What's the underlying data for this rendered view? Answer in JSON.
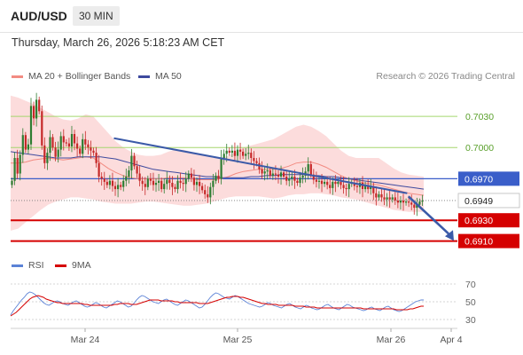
{
  "header": {
    "symbol": "AUD/USD",
    "interval": "30 MIN",
    "datetime": "Thursday, March 26, 2026 5:18:23 AM CET"
  },
  "legend": {
    "ma20_label": "MA 20 + Bollinger Bands",
    "ma50_label": "MA 50",
    "credit": "Research © 2026 Trading Central",
    "rsi_label": "RSI",
    "rsi_ma_label": "9MA"
  },
  "colors": {
    "candle_up": "#2e7d32",
    "candle_down": "#c62828",
    "bollinger_fill": "#fcd6d6",
    "ma20": "#f28b82",
    "ma50": "#3e4a9e",
    "pivot": "#3a5ec9",
    "support": "#d50000",
    "resistance": "#a5d66e",
    "trendline": "#3b5aa8",
    "rsi": "#5b82d6",
    "rsi_ma": "#d50000"
  },
  "chart_data": [
    {
      "type": "candlestick",
      "ylim": [
        0.6896,
        0.706
      ],
      "x_ticks": [
        "Mar 24",
        "Mar 25",
        "Mar 26",
        "Apr 4"
      ],
      "candle_count": 152,
      "closes": [
        0.6968,
        0.699,
        0.6975,
        0.6993,
        0.7012,
        0.6998,
        0.7003,
        0.704,
        0.7028,
        0.7046,
        0.7035,
        0.7002,
        0.6985,
        0.6995,
        0.701,
        0.7,
        0.6991,
        0.6998,
        0.7011,
        0.7005,
        0.7004,
        0.7001,
        0.7013,
        0.7004,
        0.6999,
        0.6994,
        0.7008,
        0.7003,
        0.7,
        0.6997,
        0.6995,
        0.6985,
        0.6972,
        0.697,
        0.6967,
        0.6964,
        0.6968,
        0.6963,
        0.696,
        0.6964,
        0.6962,
        0.6968,
        0.6972,
        0.6978,
        0.6992,
        0.6982,
        0.6975,
        0.6968,
        0.6965,
        0.6962,
        0.697,
        0.6968,
        0.6964,
        0.6966,
        0.6968,
        0.696,
        0.6965,
        0.6969,
        0.6966,
        0.6962,
        0.696,
        0.6968,
        0.6966,
        0.6965,
        0.697,
        0.6975,
        0.6971,
        0.6964,
        0.6967,
        0.6963,
        0.6959,
        0.6955,
        0.6952,
        0.6962,
        0.6968,
        0.6973,
        0.697,
        0.699,
        0.6994,
        0.6997,
        0.6995,
        0.6997,
        0.6992,
        0.6998,
        0.6996,
        0.6992,
        0.6994,
        0.6995,
        0.699,
        0.6987,
        0.6985,
        0.6979,
        0.6975,
        0.6977,
        0.6978,
        0.6973,
        0.6975,
        0.6974,
        0.6972,
        0.6976,
        0.6972,
        0.6968,
        0.697,
        0.6972,
        0.6968,
        0.6966,
        0.6971,
        0.6973,
        0.6977,
        0.6984,
        0.6974,
        0.6969,
        0.6967,
        0.6968,
        0.6965,
        0.6967,
        0.6964,
        0.6961,
        0.6967,
        0.6965,
        0.6967,
        0.6964,
        0.6961,
        0.696,
        0.6965,
        0.6966,
        0.6963,
        0.6962,
        0.6966,
        0.696,
        0.6964,
        0.696,
        0.6962,
        0.6956,
        0.6952,
        0.6955,
        0.6952,
        0.695,
        0.6952,
        0.695,
        0.6952,
        0.6949,
        0.6947,
        0.6949,
        0.6947,
        0.6948,
        0.6947,
        0.6945,
        0.6942,
        0.6945,
        0.6948,
        0.6949
      ],
      "bollinger_upper": [
        0.705,
        0.7048,
        0.7045,
        0.7042,
        0.7038,
        0.7034,
        0.703,
        0.7027,
        0.7026,
        0.7028,
        0.7032,
        0.703,
        0.7022,
        0.7014,
        0.7006,
        0.7,
        0.6996,
        0.6993,
        0.6992,
        0.6992,
        0.6993,
        0.6996,
        0.6998,
        0.6998,
        0.6996,
        0.6994,
        0.6992,
        0.699,
        0.699,
        0.6992,
        0.6996,
        0.7,
        0.7002,
        0.7004,
        0.7006,
        0.7008,
        0.7012,
        0.7016,
        0.702,
        0.7022,
        0.702,
        0.7016,
        0.7011,
        0.7004,
        0.6997,
        0.6992,
        0.699,
        0.699,
        0.699,
        0.699,
        0.6985,
        0.698,
        0.6976,
        0.6974,
        0.6973,
        0.6972
      ],
      "bollinger_lower": [
        0.692,
        0.6922,
        0.6928,
        0.6934,
        0.694,
        0.6945,
        0.6948,
        0.695,
        0.6952,
        0.6952,
        0.6951,
        0.695,
        0.6948,
        0.6947,
        0.6946,
        0.6946,
        0.6946,
        0.6947,
        0.6948,
        0.6948,
        0.6947,
        0.6946,
        0.6945,
        0.6944,
        0.6944,
        0.6945,
        0.6946,
        0.6948,
        0.695,
        0.6952,
        0.6953,
        0.6953,
        0.6953,
        0.6953,
        0.6952,
        0.6951,
        0.6952,
        0.6954,
        0.6955,
        0.6955,
        0.6956,
        0.6956,
        0.6955,
        0.6954,
        0.6952,
        0.6951,
        0.695,
        0.6948,
        0.6946,
        0.6944,
        0.6942,
        0.694,
        0.6939,
        0.6938,
        0.6938,
        0.6938
      ],
      "ma20": [
        0.6985,
        0.6985,
        0.6986,
        0.6988,
        0.6989,
        0.699,
        0.6989,
        0.6988,
        0.6989,
        0.699,
        0.6991,
        0.699,
        0.6985,
        0.698,
        0.6976,
        0.6973,
        0.6971,
        0.697,
        0.697,
        0.697,
        0.697,
        0.6971,
        0.6971,
        0.6971,
        0.697,
        0.6969,
        0.6969,
        0.6969,
        0.697,
        0.6972,
        0.6975,
        0.6977,
        0.6978,
        0.6979,
        0.6979,
        0.6979,
        0.698,
        0.6982,
        0.6985,
        0.6986,
        0.6986,
        0.6984,
        0.6981,
        0.6977,
        0.6973,
        0.697,
        0.6968,
        0.6966,
        0.6965,
        0.6964,
        0.6962,
        0.696,
        0.6958,
        0.6956,
        0.6955,
        0.6954
      ],
      "ma50": [
        0.6996,
        0.6995,
        0.6994,
        0.6993,
        0.6992,
        0.6991,
        0.699,
        0.699,
        0.699,
        0.6991,
        0.6991,
        0.6991,
        0.6991,
        0.699,
        0.6989,
        0.6987,
        0.6985,
        0.6983,
        0.6981,
        0.6979,
        0.6978,
        0.6977,
        0.6976,
        0.6975,
        0.6974,
        0.6973,
        0.6972,
        0.6972,
        0.6971,
        0.6971,
        0.6971,
        0.6971,
        0.6972,
        0.6972,
        0.6973,
        0.6973,
        0.6974,
        0.6974,
        0.6974,
        0.6974,
        0.6973,
        0.6973,
        0.6972,
        0.6972,
        0.6971,
        0.697,
        0.6969,
        0.6968,
        0.6967,
        0.6966,
        0.6965,
        0.6964,
        0.6963,
        0.6962,
        0.6961,
        0.696
      ],
      "levels": [
        {
          "value": 0.703,
          "label": "0.7030",
          "kind": "resistance"
        },
        {
          "value": 0.7,
          "label": "0.7000",
          "kind": "resistance"
        },
        {
          "value": 0.697,
          "label": "0.6970",
          "kind": "pivot"
        },
        {
          "value": 0.6949,
          "label": "0.6949",
          "kind": "last"
        },
        {
          "value": 0.693,
          "label": "0.6930",
          "kind": "support"
        },
        {
          "value": 0.691,
          "label": "0.6910",
          "kind": "support"
        }
      ],
      "trendline": [
        [
          0.25,
          0.7009
        ],
        [
          0.96,
          0.6956
        ]
      ],
      "forecast_arrow": [
        [
          0.963,
          0.6953
        ],
        [
          1.0,
          0.6912
        ]
      ]
    },
    {
      "type": "line",
      "yticks": [
        70,
        50,
        30
      ],
      "ylim": [
        24,
        78
      ],
      "series": [
        {
          "name": "RSI",
          "values": [
            35,
            40,
            44,
            48,
            52,
            55,
            59,
            61,
            60,
            58,
            55,
            52,
            49,
            47,
            46,
            48,
            50,
            51,
            50,
            48,
            47,
            46,
            48,
            50,
            51,
            49,
            47,
            45,
            44,
            45,
            47,
            49,
            48,
            46,
            44,
            43,
            45,
            47,
            49,
            51,
            50,
            48,
            46,
            44,
            45,
            48,
            52,
            55,
            57,
            56,
            54,
            52,
            50,
            49,
            48,
            50,
            52,
            53,
            51,
            49,
            47,
            46,
            48,
            50,
            52,
            51,
            49,
            47,
            45,
            43,
            44,
            47,
            51,
            55,
            58,
            60,
            59,
            57,
            55,
            54,
            53,
            55,
            57,
            56,
            54,
            52,
            50,
            48,
            47,
            46,
            45,
            44,
            45,
            47,
            49,
            48,
            46,
            45,
            44,
            43,
            45,
            47,
            48,
            46,
            44,
            43,
            42,
            44,
            46,
            45,
            43,
            42,
            41,
            42,
            44,
            46,
            47,
            45,
            43,
            42,
            41,
            43,
            45,
            47,
            46,
            44,
            43,
            42,
            41,
            40,
            41,
            43,
            44,
            42,
            41,
            40,
            42,
            44,
            45,
            43,
            41,
            40,
            39,
            40,
            42,
            44,
            46,
            48,
            50,
            51,
            52,
            52
          ]
        },
        {
          "name": "9MA",
          "values": [
            34,
            36,
            38,
            41,
            44,
            47,
            50,
            53,
            55,
            56,
            57,
            56,
            55,
            53,
            52,
            51,
            50,
            49,
            49,
            48,
            48,
            48,
            48,
            48,
            48,
            48,
            48,
            47,
            47,
            46,
            46,
            46,
            46,
            46,
            46,
            46,
            46,
            46,
            47,
            47,
            48,
            48,
            48,
            48,
            47,
            47,
            47,
            48,
            49,
            50,
            51,
            52,
            52,
            52,
            52,
            51,
            51,
            51,
            51,
            51,
            50,
            50,
            49,
            49,
            49,
            49,
            49,
            49,
            49,
            48,
            48,
            48,
            48,
            49,
            50,
            51,
            52,
            53,
            54,
            55,
            55,
            56,
            56,
            56,
            55,
            55,
            54,
            53,
            52,
            51,
            50,
            49,
            48,
            48,
            47,
            47,
            47,
            47,
            46,
            46,
            46,
            46,
            46,
            46,
            45,
            45,
            45,
            45,
            44,
            44,
            44,
            44,
            43,
            43,
            43,
            43,
            43,
            43,
            43,
            43,
            43,
            43,
            43,
            43,
            43,
            43,
            43,
            43,
            43,
            42,
            42,
            42,
            42,
            42,
            42,
            42,
            42,
            42,
            42,
            42,
            42,
            41,
            41,
            41,
            41,
            41,
            42,
            42,
            43,
            44,
            45,
            45
          ]
        }
      ]
    }
  ]
}
